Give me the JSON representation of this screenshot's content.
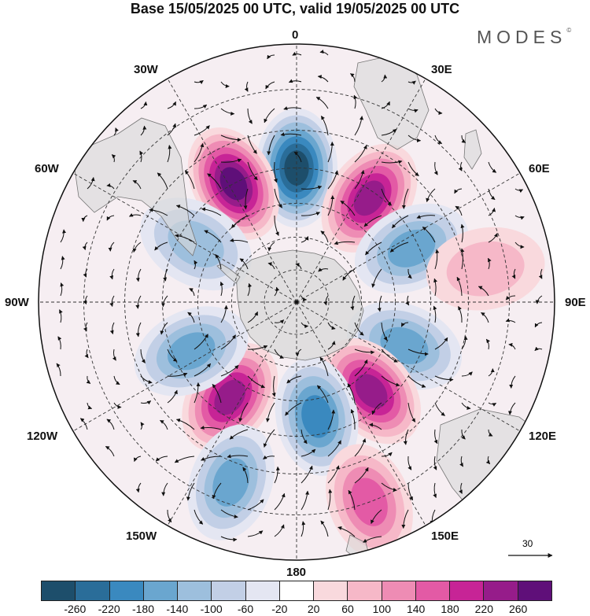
{
  "title": "Base 15/05/2025 00 UTC, valid 19/05/2025 00 UTC",
  "brand": "MODES",
  "brand_mark": "©",
  "meridians": {
    "m0": "0",
    "m30e": "30E",
    "m60e": "60E",
    "m90e": "90E",
    "m120e": "120E",
    "m150e": "150E",
    "m180": "180",
    "m150w": "150W",
    "m120w": "120W",
    "m90w": "90W",
    "m60w": "60W",
    "m30w": "30W"
  },
  "vector_key": "30",
  "colorbar": {
    "colors": [
      "#1d4e6b",
      "#2a6d99",
      "#3a89bf",
      "#6aa6cf",
      "#9dbfdd",
      "#c2cfe6",
      "#e4e6f2",
      "#ffffff",
      "#f9d9dd",
      "#f6b8c8",
      "#ee8cb4",
      "#e35aa5",
      "#c72496",
      "#961c8a",
      "#5f0f79"
    ],
    "labels": [
      "-260",
      "-220",
      "-180",
      "-140",
      "-100",
      "-60",
      "-20",
      "20",
      "60",
      "100",
      "140",
      "180",
      "220",
      "260"
    ]
  },
  "chart_data": {
    "type": "heatmap",
    "projection": "south-polar-stereographic",
    "anomalies": [
      {
        "lon": 0,
        "lat": -50,
        "value": -260
      },
      {
        "lon": 35,
        "lat": -52,
        "value": 220
      },
      {
        "lon": -28,
        "lat": -50,
        "value": 260
      },
      {
        "lon": 65,
        "lat": -52,
        "value": -140
      },
      {
        "lon": 112,
        "lat": -55,
        "value": -140
      },
      {
        "lon": 140,
        "lat": -55,
        "value": 220
      },
      {
        "lon": 170,
        "lat": -55,
        "value": -180
      },
      {
        "lon": -145,
        "lat": -55,
        "value": 220
      },
      {
        "lon": -115,
        "lat": -55,
        "value": -140
      },
      {
        "lon": -60,
        "lat": -55,
        "value": -100
      },
      {
        "lon": 160,
        "lat": -30,
        "value": 140
      },
      {
        "lon": -160,
        "lat": -35,
        "value": -140
      },
      {
        "lon": 80,
        "lat": -35,
        "value": 60
      }
    ]
  }
}
